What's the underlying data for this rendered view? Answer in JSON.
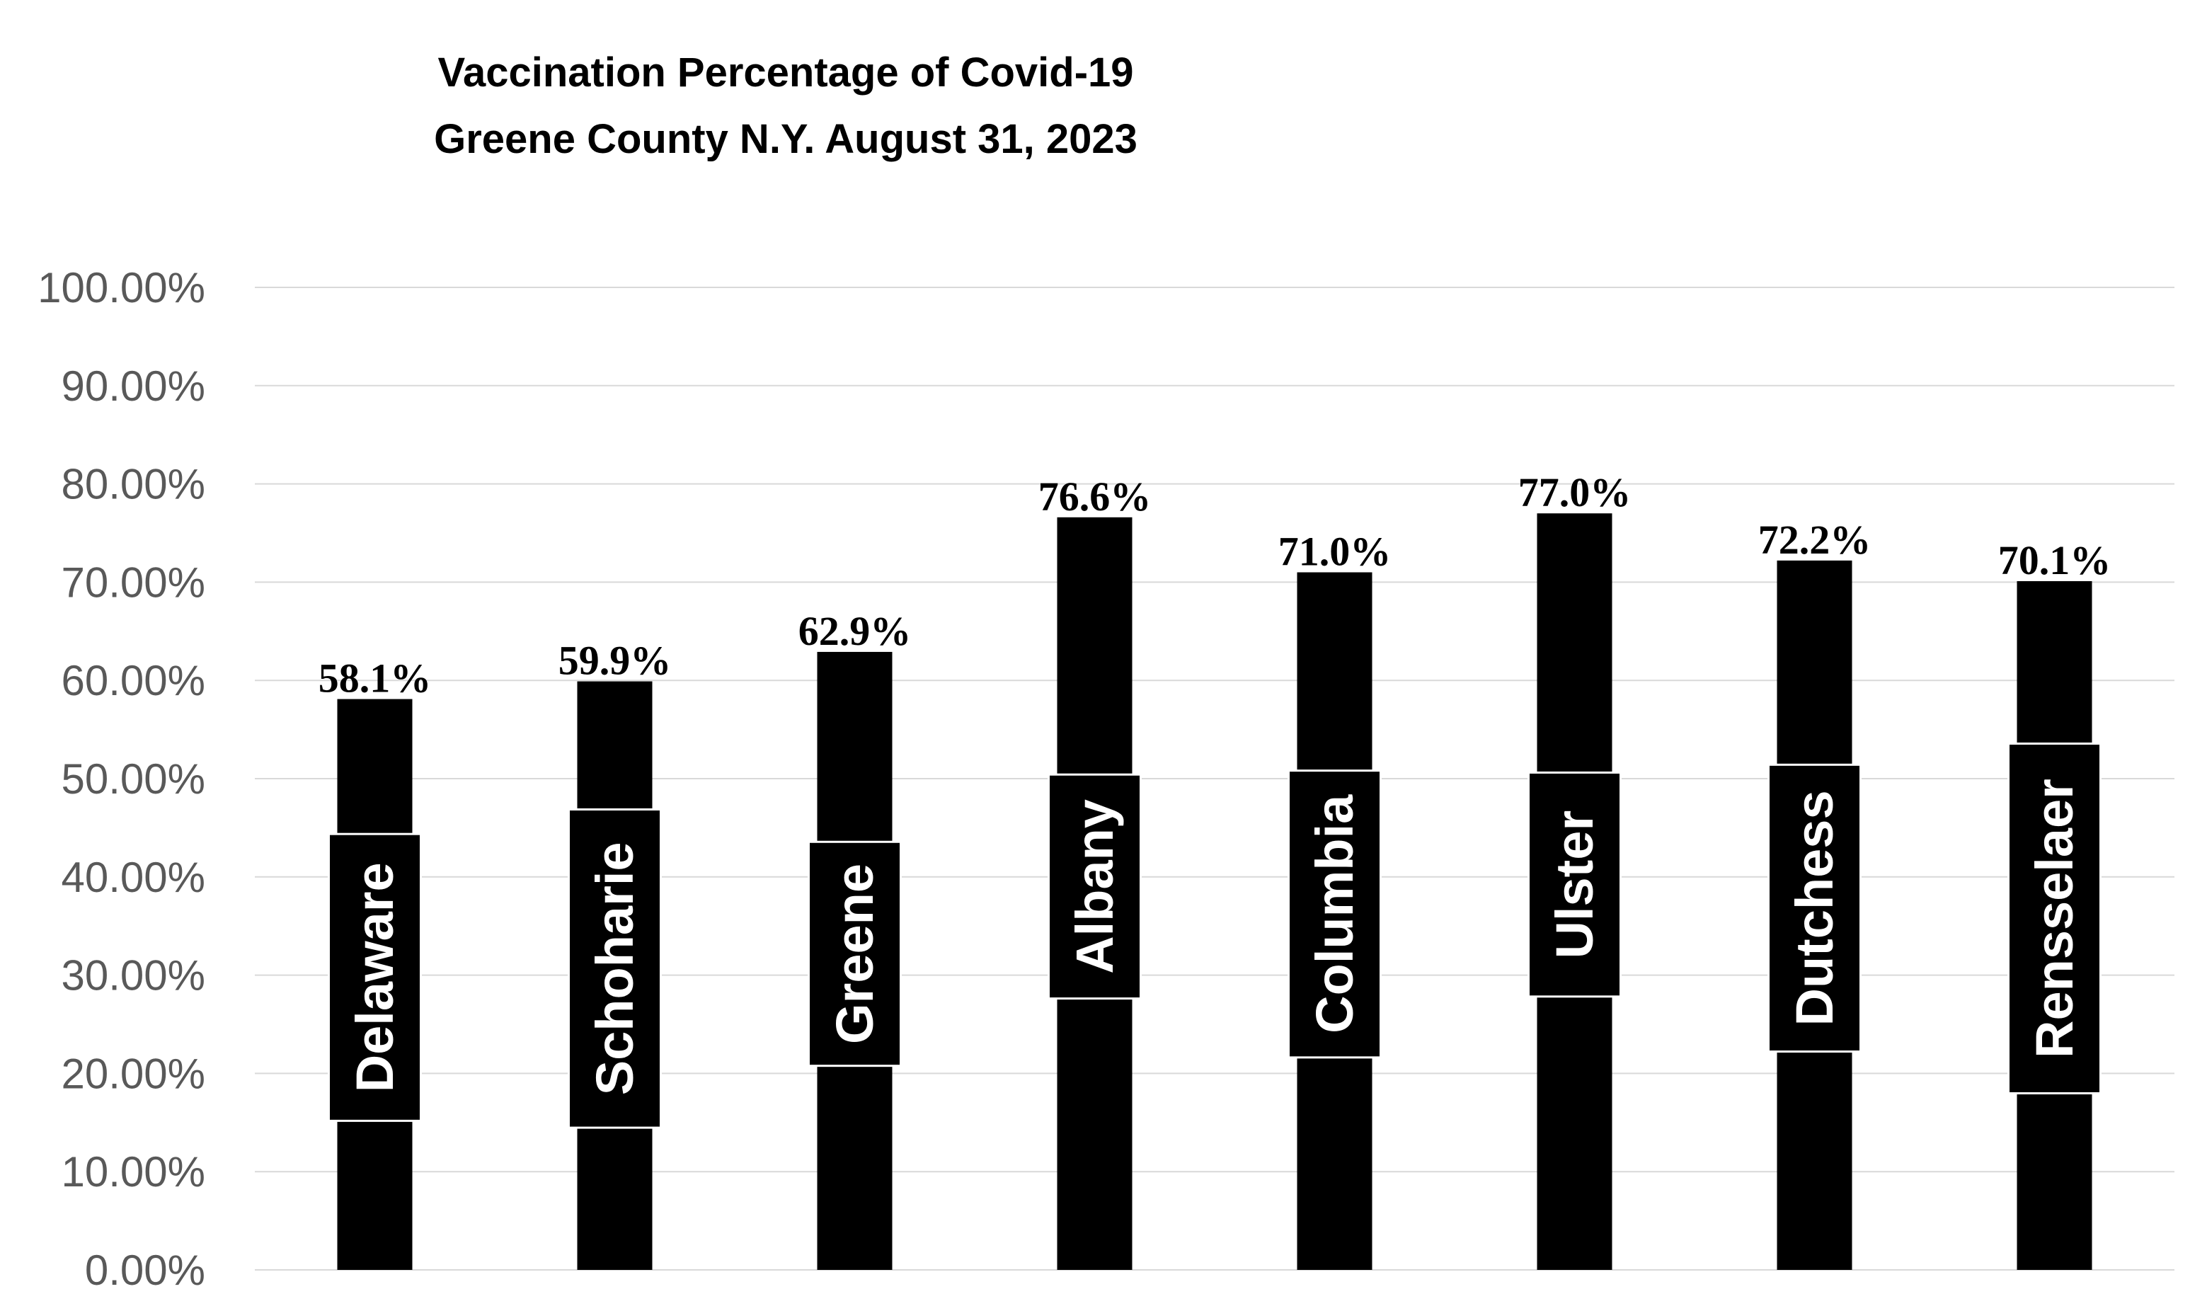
{
  "chart_data": {
    "type": "bar",
    "title": [
      "Vaccination Percentage of Covid-19",
      "Greene County N.Y. August 31, 2023"
    ],
    "xlabel": "",
    "ylabel": "",
    "ylim": [
      0,
      100
    ],
    "yticks": [
      "0.00%",
      "10.00%",
      "20.00%",
      "30.00%",
      "40.00%",
      "50.00%",
      "60.00%",
      "70.00%",
      "80.00%",
      "90.00%",
      "100.00%"
    ],
    "grid": true,
    "legend": "none",
    "categories": [
      "Delaware",
      "Schoharie",
      "Greene",
      "Albany",
      "Columbia",
      "Ulster",
      "Dutchess",
      "Rensselaer"
    ],
    "values": [
      58.1,
      59.9,
      62.9,
      76.6,
      71.0,
      77.0,
      72.2,
      70.1
    ],
    "data_labels": [
      "58.1%",
      "59.9%",
      "62.9%",
      "76.6%",
      "71.0%",
      "77.0%",
      "72.2%",
      "70.1%"
    ],
    "colors": {
      "bar": "#000000",
      "category_text": "#ffffff",
      "grid": "#d9d9d9",
      "tick_text": "#595959"
    }
  }
}
